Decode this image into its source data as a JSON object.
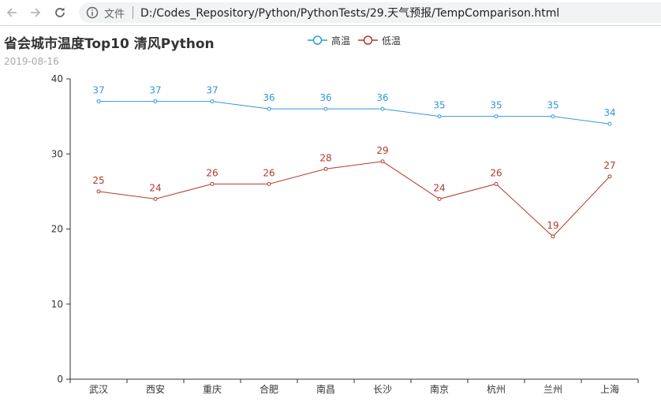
{
  "browser": {
    "back_icon": "arrow-left-icon",
    "forward_icon": "arrow-right-icon",
    "reload_icon": "reload-icon",
    "info_icon": "info-circle-icon",
    "address_label": "文件",
    "url": "D:/Codes_Repository/Python/PythonTests/29.天气预报/TempComparison.html"
  },
  "chart_data": {
    "type": "line",
    "title": "省会城市温度Top10 清风Python",
    "subtitle": "2019-08-16",
    "categories": [
      "武汉",
      "西安",
      "重庆",
      "合肥",
      "南昌",
      "长沙",
      "南京",
      "杭州",
      "兰州",
      "上海"
    ],
    "series": [
      {
        "name": "高温",
        "color": "#3398DB",
        "values": [
          37,
          37,
          37,
          36,
          36,
          36,
          35,
          35,
          35,
          34
        ]
      },
      {
        "name": "低温",
        "color": "#B03A2E",
        "values": [
          25,
          24,
          26,
          26,
          28,
          29,
          24,
          26,
          19,
          27
        ]
      }
    ],
    "ylim": [
      0,
      40
    ],
    "yticks": [
      "0",
      "10",
      "20",
      "30",
      "40"
    ],
    "grid": false,
    "legend_position": "top-center"
  }
}
